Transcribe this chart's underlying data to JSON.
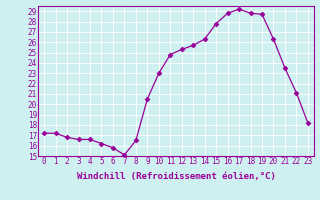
{
  "x": [
    0,
    1,
    2,
    3,
    4,
    5,
    6,
    7,
    8,
    9,
    10,
    11,
    12,
    13,
    14,
    15,
    16,
    17,
    18,
    19,
    20,
    21,
    22,
    23
  ],
  "y": [
    17.2,
    17.2,
    16.8,
    16.6,
    16.6,
    16.2,
    15.8,
    15.1,
    16.5,
    20.5,
    23.0,
    24.8,
    25.3,
    25.7,
    26.3,
    27.8,
    28.8,
    29.2,
    28.8,
    28.7,
    26.3,
    23.5,
    21.1,
    18.2
  ],
  "xlim": [
    -0.5,
    23.5
  ],
  "ylim": [
    15,
    29.5
  ],
  "yticks": [
    15,
    16,
    17,
    18,
    19,
    20,
    21,
    22,
    23,
    24,
    25,
    26,
    27,
    28,
    29
  ],
  "xticks": [
    0,
    1,
    2,
    3,
    4,
    5,
    6,
    7,
    8,
    9,
    10,
    11,
    12,
    13,
    14,
    15,
    16,
    17,
    18,
    19,
    20,
    21,
    22,
    23
  ],
  "xlabel": "Windchill (Refroidissement éolien,°C)",
  "line_color": "#990099",
  "marker": "D",
  "marker_size": 2.5,
  "bg_color": "#cff0f0",
  "grid_color": "#ffffff",
  "tick_color": "#990099",
  "label_color": "#990099",
  "tick_fontsize": 5.5,
  "xlabel_fontsize": 6.5
}
